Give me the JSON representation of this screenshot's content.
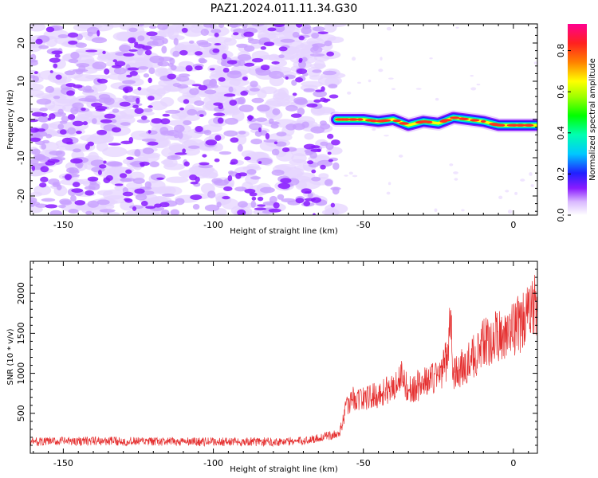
{
  "title": "PAZ1.2024.011.11.34.G30",
  "chart_data": [
    {
      "type": "heatmap",
      "xlabel": "Height of straight line (km)",
      "ylabel": "Frequency (Hz)",
      "xlim": [
        -161,
        8
      ],
      "ylim": [
        -25,
        25
      ],
      "xticks": [
        -150,
        -100,
        -50,
        0
      ],
      "yticks": [
        -20,
        -10,
        0,
        10,
        20
      ],
      "noise_region_x": [
        -161,
        -59
      ],
      "signal_trace": {
        "x": [
          -59,
          -55,
          -50,
          -45,
          -40,
          -35,
          -30,
          -25,
          -20,
          -15,
          -10,
          -5,
          0,
          5,
          8
        ],
        "y": [
          0,
          0,
          0,
          -0.5,
          0,
          -1.5,
          -0.5,
          -1,
          0.5,
          0,
          -0.5,
          -1.5,
          -1.5,
          -1.5,
          -1.5
        ]
      },
      "colorbar": {
        "label": "Normalized spectral amplitude",
        "range": [
          0.0,
          0.93
        ],
        "ticks": [
          0.0,
          0.2,
          0.4,
          0.6,
          0.8
        ],
        "colormap": "gist_ncar_like"
      }
    },
    {
      "type": "line",
      "xlabel": "Height of straight line (km)",
      "ylabel": "SNR (10 * v/v)",
      "xlim": [
        -161,
        8
      ],
      "ylim": [
        0,
        2400
      ],
      "xticks": [
        -150,
        -100,
        -50,
        0
      ],
      "yticks": [
        500,
        1000,
        1500,
        2000
      ],
      "color": "#e53030",
      "series": [
        {
          "x": [
            -161,
            -140,
            -120,
            -100,
            -80,
            -70,
            -62,
            -58,
            -56,
            -54,
            -50,
            -45,
            -40,
            -37,
            -35,
            -30,
            -25,
            -22,
            -21,
            -20,
            -15,
            -10,
            -5,
            0,
            5,
            8
          ],
          "y": [
            150,
            160,
            150,
            150,
            150,
            160,
            220,
            250,
            550,
            700,
            700,
            750,
            850,
            1000,
            800,
            900,
            1000,
            1200,
            1850,
            1000,
            1150,
            1400,
            1500,
            1600,
            1750,
            1900
          ]
        }
      ]
    }
  ]
}
